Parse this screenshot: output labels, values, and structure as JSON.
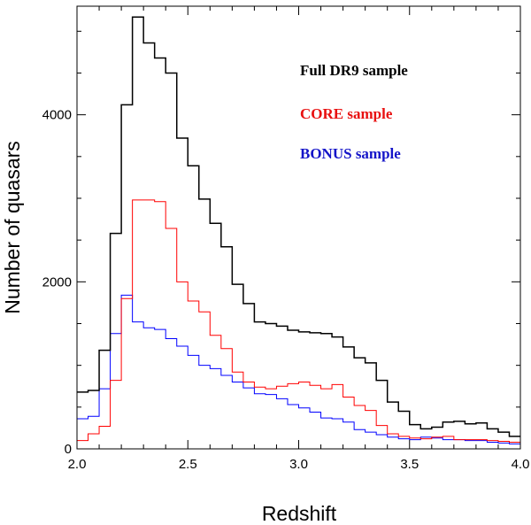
{
  "chart_data": {
    "type": "line",
    "style": "step-histogram",
    "title": "",
    "xlabel": "Redshift",
    "ylabel": "Number of quasars",
    "xlim": [
      2.0,
      4.0
    ],
    "ylim": [
      0,
      5300
    ],
    "bin_width": 0.05,
    "x_ticks": [
      2.0,
      2.5,
      3.0,
      3.5,
      4.0
    ],
    "x_tick_labels": [
      "2.0",
      "2.5",
      "3.0",
      "3.5",
      "4.0"
    ],
    "y_ticks": [
      0,
      2000,
      4000
    ],
    "y_tick_labels": [
      "0",
      "2000",
      "4000"
    ],
    "bin_edges": [
      2.0,
      2.05,
      2.1,
      2.15,
      2.2,
      2.25,
      2.3,
      2.35,
      2.4,
      2.45,
      2.5,
      2.55,
      2.6,
      2.65,
      2.7,
      2.75,
      2.8,
      2.85,
      2.9,
      2.95,
      3.0,
      3.05,
      3.1,
      3.15,
      3.2,
      3.25,
      3.3,
      3.35,
      3.4,
      3.45,
      3.5,
      3.55,
      3.6,
      3.65,
      3.7,
      3.75,
      3.8,
      3.85,
      3.9,
      3.95,
      4.0
    ],
    "series": [
      {
        "name": "Full DR9 sample",
        "color": "#000000",
        "values": [
          680,
          700,
          1180,
          2580,
          4120,
          5170,
          4860,
          4680,
          4500,
          3720,
          3390,
          2990,
          2700,
          2420,
          1970,
          1740,
          1520,
          1500,
          1470,
          1420,
          1400,
          1390,
          1380,
          1340,
          1220,
          1090,
          1030,
          820,
          560,
          450,
          290,
          240,
          260,
          320,
          330,
          300,
          310,
          240,
          200,
          150
        ]
      },
      {
        "name": "CORE sample",
        "color": "#ff0000",
        "values": [
          100,
          180,
          270,
          820,
          1800,
          2980,
          2980,
          2960,
          2640,
          2000,
          1770,
          1640,
          1360,
          1200,
          920,
          800,
          740,
          720,
          750,
          780,
          800,
          760,
          720,
          770,
          620,
          520,
          460,
          280,
          180,
          150,
          130,
          120,
          140,
          150,
          110,
          110,
          110,
          100,
          90,
          80
        ]
      },
      {
        "name": "BONUS sample",
        "color": "#0000ff",
        "values": [
          360,
          390,
          720,
          1380,
          1840,
          1520,
          1450,
          1430,
          1320,
          1230,
          1120,
          1000,
          960,
          880,
          800,
          730,
          660,
          650,
          600,
          530,
          490,
          440,
          370,
          360,
          320,
          230,
          200,
          170,
          140,
          120,
          110,
          140,
          130,
          110,
          110,
          100,
          100,
          80,
          70,
          60
        ]
      }
    ],
    "legend": {
      "placement": "top-right",
      "entries": [
        {
          "label": "Full DR9 sample",
          "color": "#000000"
        },
        {
          "label": "CORE sample",
          "color": "#e81010"
        },
        {
          "label": "BONUS sample",
          "color": "#1414c8"
        }
      ]
    }
  }
}
